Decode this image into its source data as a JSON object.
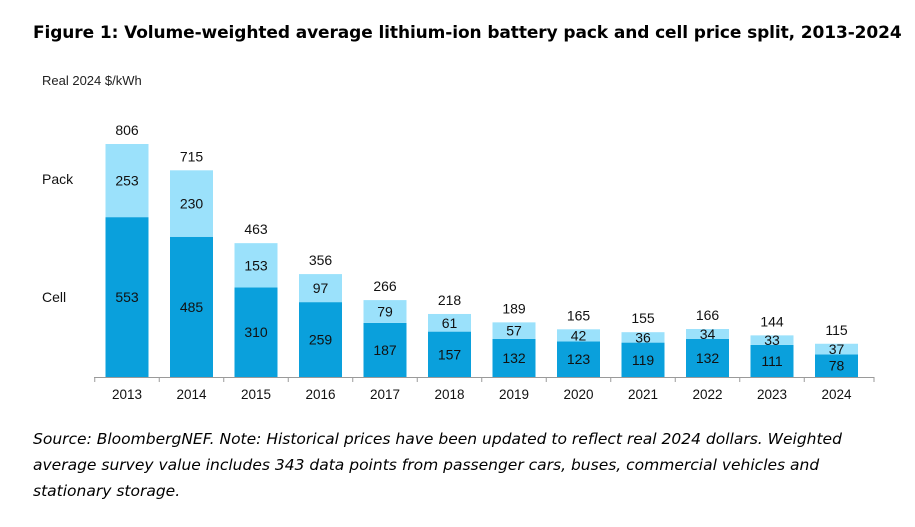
{
  "figure": {
    "title": "Figure 1: Volume-weighted average lithium-ion battery pack and cell price split, 2013-2024",
    "source_note": "Source: BloombergNEF. Note: Historical prices have been updated to reflect real 2024 dollars. Weighted average survey value includes 343 data points from passenger cars, buses, commercial vehicles and stationary storage."
  },
  "chart_data": {
    "type": "bar",
    "stacked": true,
    "title": "Figure 1: Volume-weighted average lithium-ion battery pack and cell price split, 2013-2024",
    "ylabel": "Real 2024 $/kWh",
    "xlabel": "",
    "categories": [
      "2013",
      "2014",
      "2015",
      "2016",
      "2017",
      "2018",
      "2019",
      "2020",
      "2021",
      "2022",
      "2023",
      "2024"
    ],
    "series": [
      {
        "name": "Cell",
        "color": "#0aa0dc",
        "values": [
          553,
          485,
          310,
          259,
          187,
          157,
          132,
          123,
          119,
          132,
          111,
          78
        ]
      },
      {
        "name": "Pack",
        "color": "#9be1fb",
        "values": [
          253,
          230,
          153,
          97,
          79,
          61,
          57,
          42,
          36,
          34,
          33,
          37
        ]
      }
    ],
    "totals": [
      806,
      715,
      463,
      356,
      266,
      218,
      189,
      165,
      155,
      166,
      144,
      115
    ],
    "ylim": [
      0,
      806
    ],
    "grid": false,
    "legend": "left, inline labels",
    "legend_labels": {
      "pack": "Pack",
      "cell": "Cell"
    }
  }
}
